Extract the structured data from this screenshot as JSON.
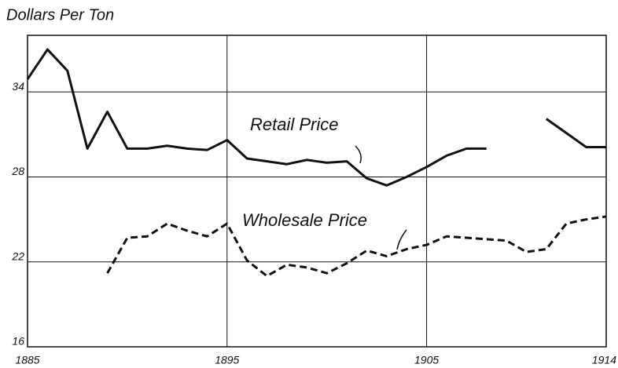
{
  "chart_data": {
    "type": "line",
    "y_label": "Dollars Per Ton",
    "annotations": [
      "Retail Price",
      "Wholesale Price"
    ],
    "x": [
      1885,
      1886,
      1887,
      1888,
      1889,
      1890,
      1891,
      1892,
      1893,
      1894,
      1895,
      1896,
      1897,
      1898,
      1899,
      1900,
      1901,
      1902,
      1903,
      1904,
      1905,
      1906,
      1907,
      1908,
      1909,
      1910,
      1911,
      1912,
      1913,
      1914
    ],
    "series": [
      {
        "name": "Retail Price",
        "color": "#111111",
        "dash": false,
        "values": [
          34.9,
          37.0,
          35.5,
          30.0,
          32.6,
          30.0,
          30.0,
          30.2,
          30.0,
          29.9,
          30.6,
          29.3,
          29.1,
          28.9,
          29.2,
          29.0,
          29.1,
          27.9,
          27.4,
          28.0,
          28.7,
          29.5,
          30.0,
          30.0,
          null,
          null,
          32.1,
          31.1,
          30.1,
          30.1
        ]
      },
      {
        "name": "Wholesale Price",
        "color": "#111111",
        "dash": true,
        "values": [
          null,
          null,
          null,
          null,
          21.2,
          23.7,
          23.8,
          24.7,
          24.2,
          23.8,
          24.7,
          22.1,
          21.0,
          21.8,
          21.6,
          21.2,
          21.9,
          22.8,
          22.4,
          22.9,
          23.2,
          23.8,
          23.7,
          23.6,
          23.5,
          22.7,
          22.9,
          24.7,
          25.0,
          25.2
        ]
      }
    ],
    "xlim": [
      1885,
      1914
    ],
    "xticks": [
      1885,
      1895,
      1905,
      1914
    ],
    "ylim": [
      16,
      38
    ],
    "yticks": [
      16,
      22,
      28,
      34
    ],
    "grid": true
  }
}
